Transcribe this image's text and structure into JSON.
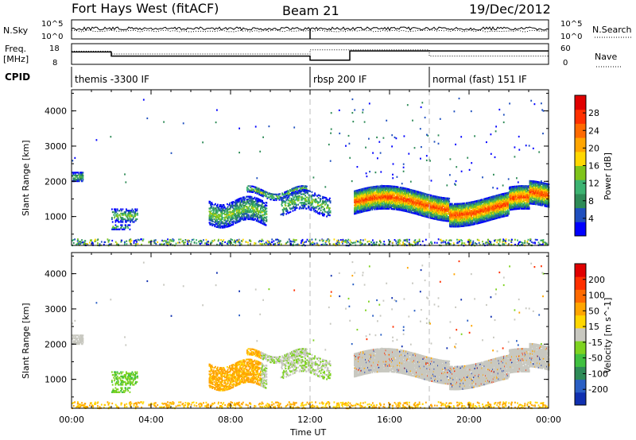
{
  "header": {
    "station": "Fort Hays West (fitACF)",
    "beam": "Beam 21",
    "date": "19/Dec/2012"
  },
  "top_panels": {
    "nsky_label": "N.Sky",
    "nsky_ticks": [
      "10^5",
      "10^0"
    ],
    "nsearch_label": "N.Search",
    "nsearch_ticks": [
      "10^5",
      "10^0"
    ],
    "freq_label_1": "Freq.",
    "freq_label_2": "[MHz]",
    "freq_ticks": [
      "18",
      "8"
    ],
    "nave_label": "Nave",
    "nave_ticks": [
      "60",
      "0"
    ],
    "cpid_label": "CPID",
    "cpid_segments": [
      {
        "label": "themis -3300 IF",
        "start_h": 0,
        "end_h": 12
      },
      {
        "label": "rbsp 200 IF",
        "start_h": 12,
        "end_h": 18
      },
      {
        "label": "normal (fast) 151 IF",
        "start_h": 18,
        "end_h": 24
      }
    ],
    "freq_series": [
      [
        0,
        14
      ],
      [
        2,
        14
      ],
      [
        2,
        12
      ],
      [
        12,
        12
      ],
      [
        12,
        10
      ],
      [
        14,
        10
      ],
      [
        14,
        14.5
      ],
      [
        24,
        14.5
      ]
    ],
    "nave_series": [
      [
        0,
        38
      ],
      [
        2,
        38
      ],
      [
        2,
        30
      ],
      [
        12,
        30
      ],
      [
        12,
        42
      ],
      [
        18,
        42
      ],
      [
        18,
        24
      ],
      [
        24,
        24
      ]
    ]
  },
  "chart_data": [
    {
      "type": "heatmap",
      "name": "power",
      "xlabel": "",
      "ylabel": "Slant Range [km]",
      "x_ticks": [
        "00:00",
        "04:00",
        "08:00",
        "12:00",
        "16:00",
        "20:00",
        "00:00"
      ],
      "y_ticks": [
        "1000",
        "2000",
        "3000",
        "4000"
      ],
      "xlim": [
        0,
        24
      ],
      "ylim": [
        180,
        4600
      ],
      "colorbar_label": "Power [dB]",
      "colorbar_ticks": [
        "4",
        "8",
        "12",
        "16",
        "20",
        "24",
        "28"
      ],
      "colorbar_colors": [
        "#0000ff",
        "#1f4fbf",
        "#2e8b57",
        "#3cb371",
        "#7fc41a",
        "#ffd700",
        "#ffa500",
        "#ff6a00",
        "#ff3000",
        "#e00000"
      ]
    },
    {
      "type": "heatmap",
      "name": "velocity",
      "xlabel": "Time UT",
      "ylabel": "Slant Range [km]",
      "x_ticks": [
        "00:00",
        "04:00",
        "08:00",
        "12:00",
        "16:00",
        "20:00",
        "00:00"
      ],
      "y_ticks": [
        "1000",
        "2000",
        "3000",
        "4000"
      ],
      "xlim": [
        0,
        24
      ],
      "ylim": [
        180,
        4600
      ],
      "colorbar_label": "Velocity [m s^-1]",
      "colorbar_ticks": [
        "200",
        "100",
        "50",
        "15",
        "-15",
        "-50",
        "-100",
        "-200"
      ],
      "colorbar_colors": [
        "#1030b0",
        "#2a5fc4",
        "#2e8b57",
        "#40c040",
        "#7ed320",
        "#c8c8c0",
        "#ffd700",
        "#ffa500",
        "#ff6a00",
        "#ff3000",
        "#e00000"
      ]
    }
  ]
}
